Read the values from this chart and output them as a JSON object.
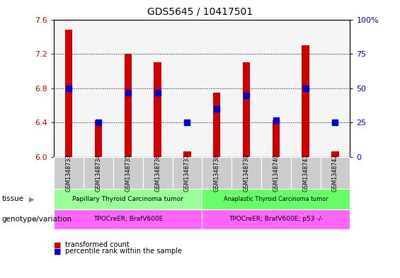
{
  "title": "GDS5645 / 10417501",
  "samples": [
    "GSM1348733",
    "GSM1348734",
    "GSM1348735",
    "GSM1348736",
    "GSM1348737",
    "GSM1348738",
    "GSM1348739",
    "GSM1348740",
    "GSM1348741",
    "GSM1348742"
  ],
  "transformed_count": [
    7.48,
    6.43,
    7.2,
    7.1,
    6.07,
    6.75,
    7.1,
    6.43,
    7.3,
    6.07
  ],
  "percentile_rank": [
    50,
    25,
    47,
    47,
    25,
    35,
    45,
    27,
    50,
    25
  ],
  "ylim_left": [
    6.0,
    7.6
  ],
  "ylim_right": [
    0,
    100
  ],
  "yticks_left": [
    6.0,
    6.4,
    6.8,
    7.2,
    7.6
  ],
  "yticks_right": [
    0,
    25,
    50,
    75,
    100
  ],
  "bar_color": "#cc0000",
  "dot_color": "#0000cc",
  "bar_width": 0.25,
  "dot_size": 40,
  "tissue_groups": [
    {
      "label": "Papillary Thyroid Carcinoma tumor",
      "start": 0,
      "end": 4,
      "color": "#99ff99"
    },
    {
      "label": "Anaplastic Thyroid Carcinoma tumor",
      "start": 5,
      "end": 9,
      "color": "#66ff66"
    }
  ],
  "genotype_groups": [
    {
      "label": "TPOCreER; BrafV600E",
      "start": 0,
      "end": 4,
      "color": "#ff66ff"
    },
    {
      "label": "TPOCreER; BrafV600E; p53 -/-",
      "start": 5,
      "end": 9,
      "color": "#ff66ff"
    }
  ],
  "tissue_label": "tissue",
  "genotype_label": "genotype/variation",
  "legend_items": [
    {
      "label": "transformed count",
      "color": "#cc0000"
    },
    {
      "label": "percentile rank within the sample",
      "color": "#0000cc"
    }
  ],
  "tick_label_color_left": "#cc0000",
  "tick_label_color_right": "#0000cc",
  "plot_bg_color": "#f5f5f5",
  "sample_box_color": "#cccccc"
}
